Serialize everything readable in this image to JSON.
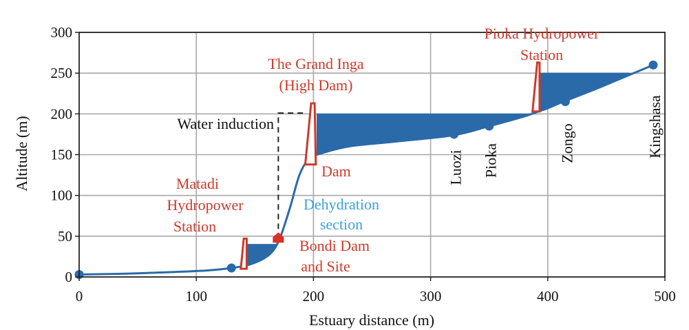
{
  "colors": {
    "river": "#2a6aa8",
    "annotation_red": "#cc3a2a",
    "annotation_blue": "#3aa0d8",
    "grid": "#a8a8a8",
    "axis": "#222222"
  },
  "chart_data": {
    "type": "area",
    "title": "",
    "xlabel": "Estuary distance (m)",
    "ylabel": "Altitude (m)",
    "xlim": [
      0,
      500
    ],
    "ylim": [
      0,
      300
    ],
    "xticks": [
      0,
      100,
      200,
      300,
      400,
      500
    ],
    "yticks": [
      0,
      50,
      100,
      150,
      200,
      250,
      300
    ],
    "grid": true,
    "river_profile": {
      "x": [
        0,
        40,
        80,
        110,
        130,
        145,
        158,
        166,
        172,
        180,
        188,
        196,
        203,
        230,
        270,
        320,
        350,
        380,
        392,
        400,
        415,
        440,
        465,
        490
      ],
      "y": [
        3,
        4,
        6,
        8,
        11,
        15,
        23,
        33,
        50,
        85,
        125,
        145,
        150,
        160,
        166,
        174,
        185,
        197,
        203,
        207,
        216,
        230,
        245,
        260
      ]
    },
    "reservoirs": [
      {
        "x_start": 143,
        "x_end": 168,
        "level": 40
      },
      {
        "x_start": 203,
        "x_end": 389,
        "level": 200
      },
      {
        "x_start": 393,
        "x_end": 470,
        "level": 250
      }
    ],
    "stations": [
      {
        "name": "",
        "x": 0,
        "y": 3
      },
      {
        "name": "",
        "x": 130,
        "y": 11
      },
      {
        "name": "Luozi",
        "x": 320,
        "y": 175
      },
      {
        "name": "Pioka",
        "x": 350,
        "y": 185
      },
      {
        "name": "Zongo",
        "x": 415,
        "y": 215
      },
      {
        "name": "Kingshasa",
        "x": 490,
        "y": 260
      }
    ],
    "dams": [
      {
        "x_bottom": [
          138,
          143
        ],
        "x_top": [
          140.5,
          143
        ],
        "y": [
          10,
          47
        ]
      },
      {
        "x_bottom": [
          193,
          202
        ],
        "x_top": [
          198,
          201
        ],
        "y": [
          138,
          213
        ]
      },
      {
        "x_bottom": [
          387,
          393
        ],
        "x_top": [
          391,
          393
        ],
        "y": [
          203,
          263
        ]
      }
    ],
    "water_induction": {
      "x": [
        170,
        170,
        192
      ],
      "y": [
        47,
        201,
        201
      ]
    },
    "bondi_site": {
      "x": 170,
      "y": 48
    },
    "annotations": {
      "matadi": [
        "Matadi",
        "Hydropower",
        "Station"
      ],
      "grand_inga": [
        "The Grand Inga",
        "(High Dam)"
      ],
      "pioka_station": [
        "Pioka Hydropower",
        "Station"
      ],
      "water_induction": "Water induction",
      "dam": "Dam",
      "dehydration": [
        "Dehydration",
        "section"
      ],
      "bondi": [
        "Bondi Dam",
        "and Site"
      ]
    }
  }
}
